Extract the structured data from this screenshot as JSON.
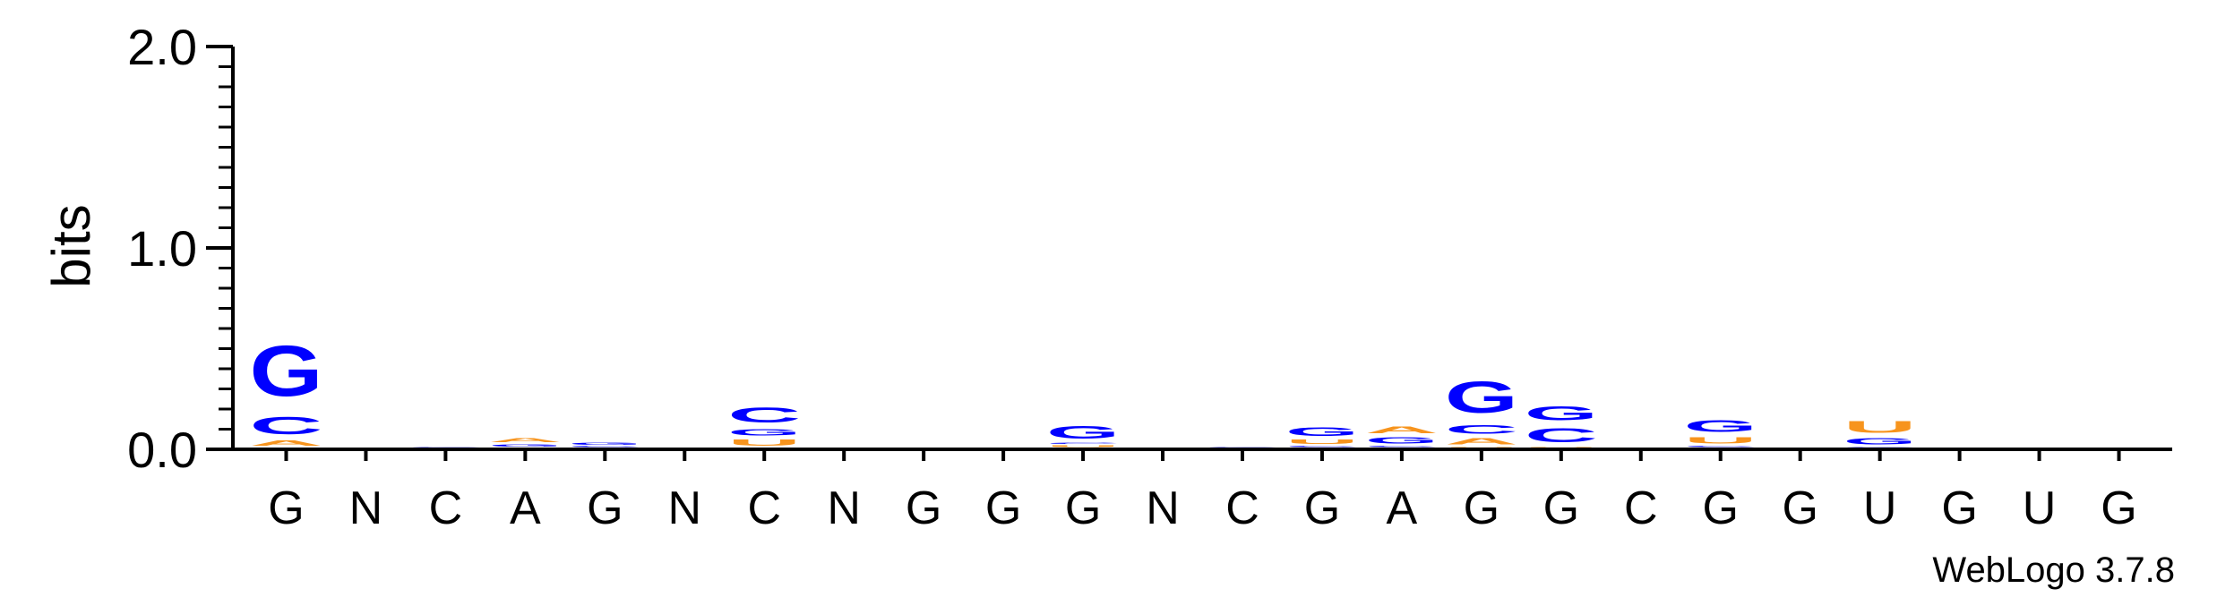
{
  "chart_data": {
    "type": "sequence-logo",
    "ylabel": "bits",
    "ylim": [
      0,
      2.0
    ],
    "yticks": [
      "0.0",
      "1.0",
      "2.0"
    ],
    "positions": [
      "G",
      "N",
      "C",
      "A",
      "G",
      "N",
      "C",
      "N",
      "G",
      "G",
      "G",
      "N",
      "C",
      "G",
      "A",
      "G",
      "G",
      "C",
      "G",
      "G",
      "U",
      "G",
      "U",
      "G"
    ],
    "stacks": [
      [
        {
          "l": "A",
          "h": 0.04
        },
        {
          "l": "C",
          "h": 0.14
        },
        {
          "l": "G",
          "h": 0.4
        }
      ],
      [],
      [
        {
          "l": "C",
          "h": 0.006
        }
      ],
      [
        {
          "l": "G",
          "h": 0.02
        },
        {
          "l": "A",
          "h": 0.03
        }
      ],
      [
        {
          "l": "C",
          "h": 0.01
        },
        {
          "l": "G",
          "h": 0.018
        }
      ],
      [],
      [
        {
          "l": "U",
          "h": 0.05
        },
        {
          "l": "G",
          "h": 0.05
        },
        {
          "l": "C",
          "h": 0.12
        }
      ],
      [],
      [],
      [],
      [
        {
          "l": "U",
          "h": 0.015
        },
        {
          "l": "C",
          "h": 0.01
        },
        {
          "l": "G",
          "h": 0.1
        }
      ],
      [],
      [
        {
          "l": "C",
          "h": 0.005
        }
      ],
      [
        {
          "l": "C",
          "h": 0.01
        },
        {
          "l": "U",
          "h": 0.035
        },
        {
          "l": "G",
          "h": 0.07
        }
      ],
      [
        {
          "l": "C",
          "h": 0.01
        },
        {
          "l": "G",
          "h": 0.05
        },
        {
          "l": "A",
          "h": 0.055
        }
      ],
      [
        {
          "l": "U",
          "h": 0.005
        },
        {
          "l": "A",
          "h": 0.05
        },
        {
          "l": "C",
          "h": 0.07
        },
        {
          "l": "G",
          "h": 0.25
        }
      ],
      [
        {
          "l": "U",
          "h": 0.005
        },
        {
          "l": "C",
          "h": 0.11
        },
        {
          "l": "G",
          "h": 0.11
        }
      ],
      [],
      [
        {
          "l": "C",
          "h": 0.01
        },
        {
          "l": "U",
          "h": 0.05
        },
        {
          "l": "G",
          "h": 0.09
        }
      ],
      [],
      [
        {
          "l": "C",
          "h": 0.005
        },
        {
          "l": "G",
          "h": 0.05
        },
        {
          "l": "U",
          "h": 0.09
        }
      ],
      [],
      [],
      []
    ],
    "colors": {
      "A": "#f7941d",
      "U": "#f7941d",
      "C": "#0000ff",
      "G": "#0000ff"
    }
  },
  "credit": "WebLogo 3.7.8"
}
